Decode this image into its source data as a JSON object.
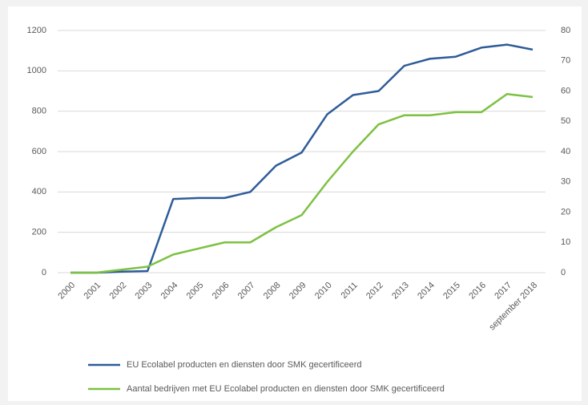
{
  "chart_data": {
    "type": "line",
    "categories": [
      "2000",
      "2001",
      "2002",
      "2003",
      "2004",
      "2005",
      "2006",
      "2007",
      "2008",
      "2009",
      "2010",
      "2011",
      "2012",
      "2013",
      "2014",
      "2015",
      "2016",
      "2017",
      "september 2018"
    ],
    "series": [
      {
        "name": "EU Ecolabel producten en diensten door SMK gecertificeerd",
        "color": "#2e5c99",
        "values": [
          0,
          0,
          5,
          8,
          365,
          370,
          370,
          400,
          530,
          595,
          785,
          880,
          900,
          1025,
          1060,
          1070,
          1115,
          1130,
          1105
        ]
      },
      {
        "name": "Aantal bedrijven met EU Ecolabel producten en diensten door SMK gecertificeerd",
        "color": "#7dc142",
        "axis": "y2",
        "values": [
          0,
          0,
          1,
          2,
          6,
          8,
          10,
          10,
          15,
          19,
          30,
          40,
          49,
          52,
          52,
          53,
          53,
          59,
          58
        ]
      }
    ],
    "ylim": [
      0,
      1200
    ],
    "yticks": [
      0,
      200,
      400,
      600,
      800,
      1000,
      1200
    ],
    "y2lim": [
      0,
      80
    ],
    "y2ticks": [
      0,
      10,
      20,
      30,
      40,
      50,
      60,
      70,
      80
    ],
    "grid": true,
    "legend": "bottom"
  }
}
